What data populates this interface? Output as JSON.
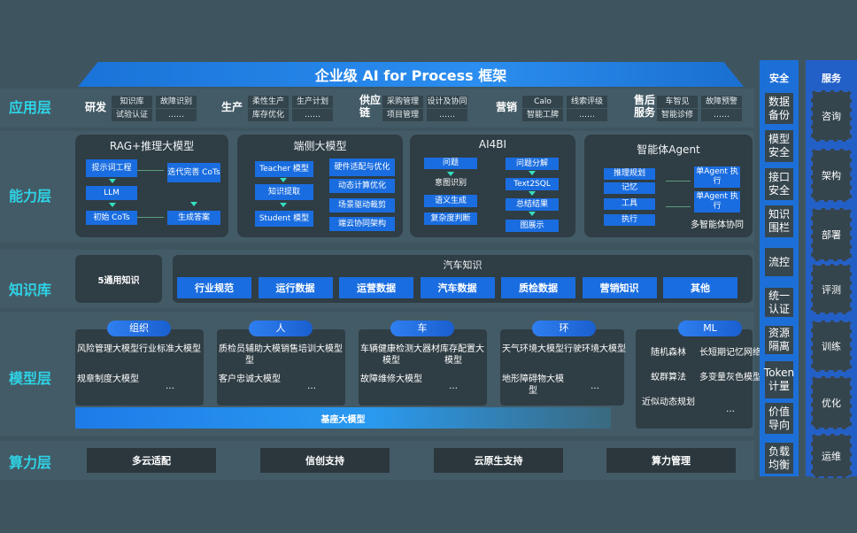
{
  "title": "企业级 AI for Process 框架",
  "layers": {
    "app": "应用层",
    "ability": "能力层",
    "knowledge": "知识库",
    "model": "模型层",
    "compute": "算力层"
  },
  "app_groups": [
    {
      "name": "研发",
      "items": [
        "知识库",
        "故障识别",
        "试验认证",
        "……"
      ]
    },
    {
      "name": "生产",
      "items": [
        "柔性生产",
        "生产计划",
        "库存优化",
        "……"
      ]
    },
    {
      "name": "供应链",
      "items": [
        "采购管理",
        "设计及协同",
        "项目管理",
        "……"
      ]
    },
    {
      "name": "营销",
      "items": [
        "Calo",
        "线索评级",
        "智能工牌",
        "……"
      ]
    },
    {
      "name": "售后服务",
      "items": [
        "车智见",
        "故障预警",
        "智能诊修",
        "……"
      ]
    }
  ],
  "ability": {
    "rag": {
      "title": "RAG+推理大模型",
      "steps": [
        "提示词工程",
        "LLM",
        "初始 CoTs",
        "迭代完善 CoTs",
        "生成答案"
      ]
    },
    "edge": {
      "title": "端侧大模型",
      "steps": [
        "Teacher 模型",
        "知识提取",
        "Student 模型"
      ],
      "side": [
        "硬件适配与优化",
        "动态计算优化",
        "场景驱动裁剪",
        "端云协同架构"
      ]
    },
    "ai4bi": {
      "title": "AI4BI",
      "left": [
        "问题",
        "意图识别",
        "语义生成",
        "复杂度判断"
      ],
      "right": [
        "问题分解",
        "Text2SQL",
        "总结结果",
        "图展示"
      ]
    },
    "agent": {
      "title": "智能体Agent",
      "items": [
        "推理规划",
        "记忆",
        "工具",
        "执行"
      ],
      "exec": [
        "单Agent 执行",
        "单Agent 执行"
      ],
      "footer": "多智能体协同"
    }
  },
  "knowledge": {
    "general": "5通用知识",
    "auto_title": "汽车知识",
    "auto_items": [
      "行业规范",
      "运行数据",
      "运营数据",
      "汽车数据",
      "质检数据",
      "营销知识",
      "其他"
    ]
  },
  "model": {
    "groups": [
      {
        "name": "组织",
        "items": [
          "风险管理大模型",
          "行业标准大模型",
          "规章制度大模型",
          "…"
        ]
      },
      {
        "name": "人",
        "items": [
          "质检员辅助大模型",
          "销售培训大模型",
          "客户忠诚大模型",
          "…"
        ]
      },
      {
        "name": "车",
        "items": [
          "车辆健康检测大模型",
          "器材库存配置大模型",
          "故障维修大模型",
          "…"
        ]
      },
      {
        "name": "环",
        "items": [
          "天气环境大模型",
          "行驶环境大模型",
          "地形障碍物大模型",
          "…"
        ]
      },
      {
        "name": "ML",
        "items": [
          "随机森林",
          "长短期记忆网络",
          "蚁群算法",
          "多变量灰色模型",
          "近似动态规划",
          "…"
        ]
      }
    ],
    "base": "基座大模型"
  },
  "compute": [
    "多云适配",
    "信创支持",
    "云原生支持",
    "算力管理"
  ],
  "security": {
    "title": "安全",
    "items": [
      "数据备份",
      "模型安全",
      "接口安全",
      "知识围栏",
      "流控",
      "统一认证",
      "资源隔离",
      "Token计量",
      "价值导向",
      "负载均衡"
    ]
  },
  "service": {
    "title": "服务",
    "items": [
      "咨询",
      "架构",
      "部署",
      "评测",
      "训练",
      "优化",
      "运维"
    ]
  },
  "colors": {
    "accent": "#1a6de0",
    "label": "#2ed3e6",
    "background": "#3e5560"
  }
}
